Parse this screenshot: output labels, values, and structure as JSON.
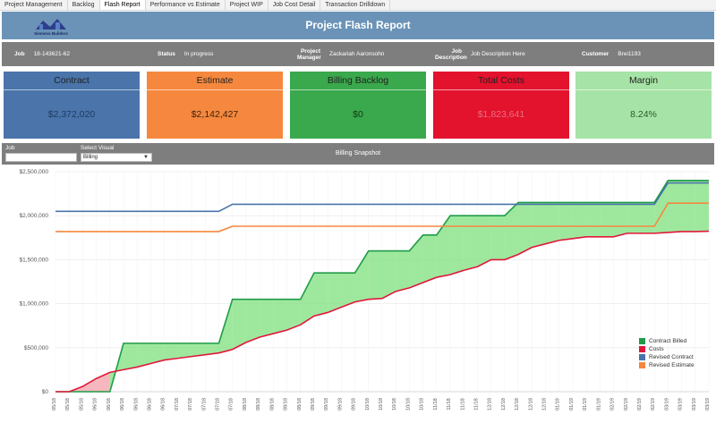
{
  "tabs": [
    {
      "label": "Project Management",
      "active": false
    },
    {
      "label": "Backlog",
      "active": false
    },
    {
      "label": "Flash Report",
      "active": true
    },
    {
      "label": "Performance vs Estimate",
      "active": false
    },
    {
      "label": "Project WIP",
      "active": false
    },
    {
      "label": "Job Cost Detail",
      "active": false
    },
    {
      "label": "Transaction Drilldown",
      "active": false
    }
  ],
  "header": {
    "title": "Project Flash Report",
    "logo_text": "Siemens Builders"
  },
  "info": {
    "job_label": "Job",
    "job_value": "18-143621-62",
    "status_label": "Status",
    "status_value": "In progress",
    "pm_label": "Project Manager",
    "pm_value": "Zackariah Aaronsohn",
    "desc_label": "Job Description",
    "desc_value": "Job Description Here",
    "customer_label": "Customer",
    "customer_value": "Brei1193"
  },
  "kpis": [
    {
      "label": "Contract",
      "value": "$2,372,020",
      "head_color": "#4a74aa",
      "body_color": "#4a74aa",
      "value_color": "#1f3b63"
    },
    {
      "label": "Estimate",
      "value": "$2,142,427",
      "head_color": "#f5883e",
      "body_color": "#f5883e",
      "value_color": "#3a2210"
    },
    {
      "label": "Billing Backlog",
      "value": "$0",
      "head_color": "#3aa84c",
      "body_color": "#3aa84c",
      "value_color": "#113816"
    },
    {
      "label": "Total Costs",
      "value": "$1,823,641",
      "head_color": "#e3122d",
      "body_color": "#e3122d",
      "value_color": "#e8707e"
    },
    {
      "label": "Margin",
      "value": "8.24%",
      "head_color": "#a6e3a6",
      "body_color": "#a6e3a6",
      "value_color": "#2b5a2b"
    }
  ],
  "filters": {
    "job_label": "Job",
    "job_value": "",
    "visual_label": "Select Visual",
    "visual_value": "Billing",
    "snapshot_title": "Billing Snapshot"
  },
  "chart_data": {
    "type": "line",
    "ylim": [
      0,
      2500000
    ],
    "y_ticks": [
      0,
      500000,
      1000000,
      1500000,
      2000000,
      2500000
    ],
    "y_tick_labels": [
      "$0",
      "$500,000",
      "$1,000,000",
      "$1,500,000",
      "$2,000,000",
      "$2,500,000"
    ],
    "x": [
      "05/18",
      "05/18",
      "05/18",
      "06/18",
      "06/18",
      "06/18",
      "06/18",
      "06/18",
      "06/18",
      "07/18",
      "07/18",
      "07/18",
      "07/18",
      "07/18",
      "08/18",
      "08/18",
      "08/18",
      "08/18",
      "08/18",
      "09/18",
      "09/18",
      "09/18",
      "09/18",
      "10/18",
      "10/18",
      "10/18",
      "10/18",
      "10/18",
      "11/18",
      "11/18",
      "11/18",
      "11/18",
      "12/18",
      "12/18",
      "12/18",
      "12/18",
      "12/18",
      "01/19",
      "01/19",
      "01/19",
      "01/19",
      "02/19",
      "02/19",
      "02/19",
      "02/19",
      "03/19",
      "03/19",
      "03/19",
      "03/19"
    ],
    "series": [
      {
        "name": "Contract Billed",
        "color": "#1f9c47",
        "values": [
          0,
          0,
          0,
          0,
          0,
          550000,
          550000,
          550000,
          550000,
          550000,
          550000,
          550000,
          550000,
          1050000,
          1050000,
          1050000,
          1050000,
          1050000,
          1050000,
          1350000,
          1350000,
          1350000,
          1350000,
          1600000,
          1600000,
          1600000,
          1600000,
          1780000,
          1780000,
          2000000,
          2000000,
          2000000,
          2000000,
          2000000,
          2150000,
          2150000,
          2150000,
          2150000,
          2150000,
          2150000,
          2150000,
          2150000,
          2150000,
          2150000,
          2150000,
          2400000,
          2400000,
          2400000,
          2400000
        ]
      },
      {
        "name": "Costs",
        "color": "#e0183a",
        "values": [
          0,
          0,
          60000,
          150000,
          220000,
          250000,
          280000,
          320000,
          360000,
          380000,
          400000,
          420000,
          440000,
          480000,
          560000,
          620000,
          660000,
          700000,
          760000,
          860000,
          900000,
          960000,
          1020000,
          1050000,
          1060000,
          1140000,
          1180000,
          1240000,
          1300000,
          1330000,
          1380000,
          1420000,
          1500000,
          1500000,
          1560000,
          1640000,
          1680000,
          1720000,
          1740000,
          1760000,
          1760000,
          1760000,
          1800000,
          1800000,
          1800000,
          1810000,
          1820000,
          1820000,
          1823641
        ]
      },
      {
        "name": "Revised Contract",
        "color": "#4a74aa",
        "values": [
          2050000,
          2050000,
          2050000,
          2050000,
          2050000,
          2050000,
          2050000,
          2050000,
          2050000,
          2050000,
          2050000,
          2050000,
          2050000,
          2130000,
          2130000,
          2130000,
          2130000,
          2130000,
          2130000,
          2130000,
          2130000,
          2130000,
          2130000,
          2130000,
          2130000,
          2130000,
          2130000,
          2130000,
          2130000,
          2130000,
          2130000,
          2130000,
          2130000,
          2130000,
          2130000,
          2130000,
          2130000,
          2130000,
          2130000,
          2130000,
          2130000,
          2130000,
          2130000,
          2130000,
          2130000,
          2372020,
          2372020,
          2372020,
          2372020
        ]
      },
      {
        "name": "Revised Estimate",
        "color": "#f5883e",
        "values": [
          1820000,
          1820000,
          1820000,
          1820000,
          1820000,
          1820000,
          1820000,
          1820000,
          1820000,
          1820000,
          1820000,
          1820000,
          1820000,
          1880000,
          1880000,
          1880000,
          1880000,
          1880000,
          1880000,
          1880000,
          1880000,
          1880000,
          1880000,
          1880000,
          1880000,
          1880000,
          1880000,
          1880000,
          1880000,
          1880000,
          1880000,
          1880000,
          1880000,
          1880000,
          1880000,
          1880000,
          1880000,
          1880000,
          1880000,
          1880000,
          1880000,
          1880000,
          1880000,
          1880000,
          1880000,
          2142427,
          2142427,
          2142427,
          2142427
        ]
      }
    ],
    "fill_over_color": "#7ee07e",
    "fill_under_color": "#f3a0a8",
    "legend_position": "bottom-right",
    "grid": true
  }
}
